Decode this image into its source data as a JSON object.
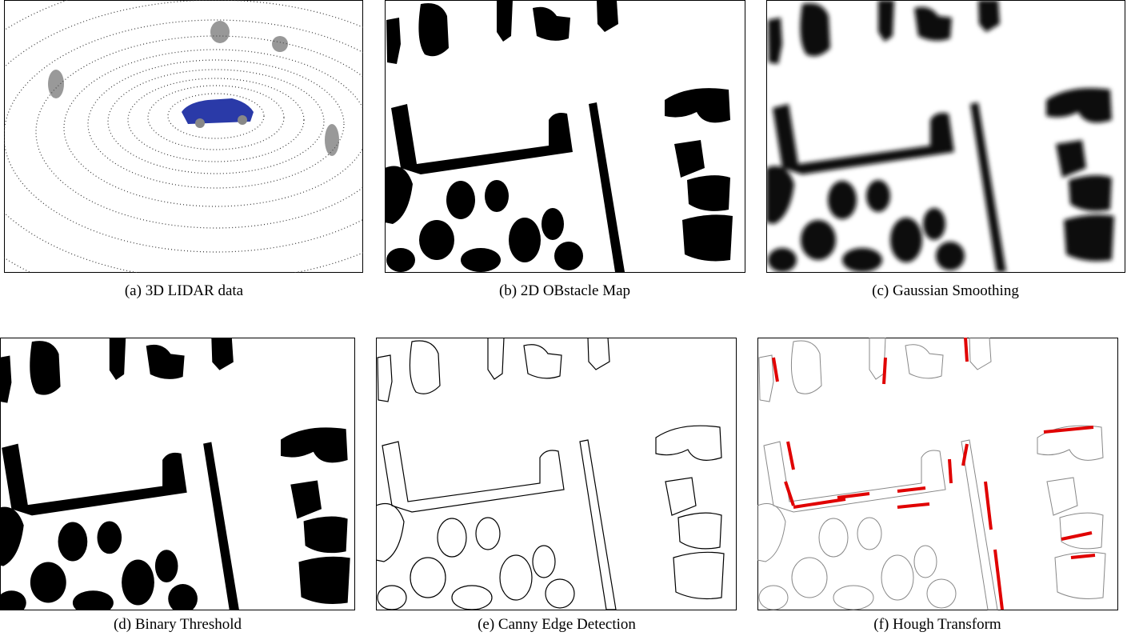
{
  "figure": {
    "panels": [
      {
        "caption": "(a) 3D LIDAR data"
      },
      {
        "caption": "(b) 2D OBstacle Map"
      },
      {
        "caption": "(c) Gaussian Smoothing"
      },
      {
        "caption": "(d) Binary Threshold"
      },
      {
        "caption": "(e) Canny Edge Detection"
      },
      {
        "caption": "(f) Hough Transform"
      }
    ]
  }
}
